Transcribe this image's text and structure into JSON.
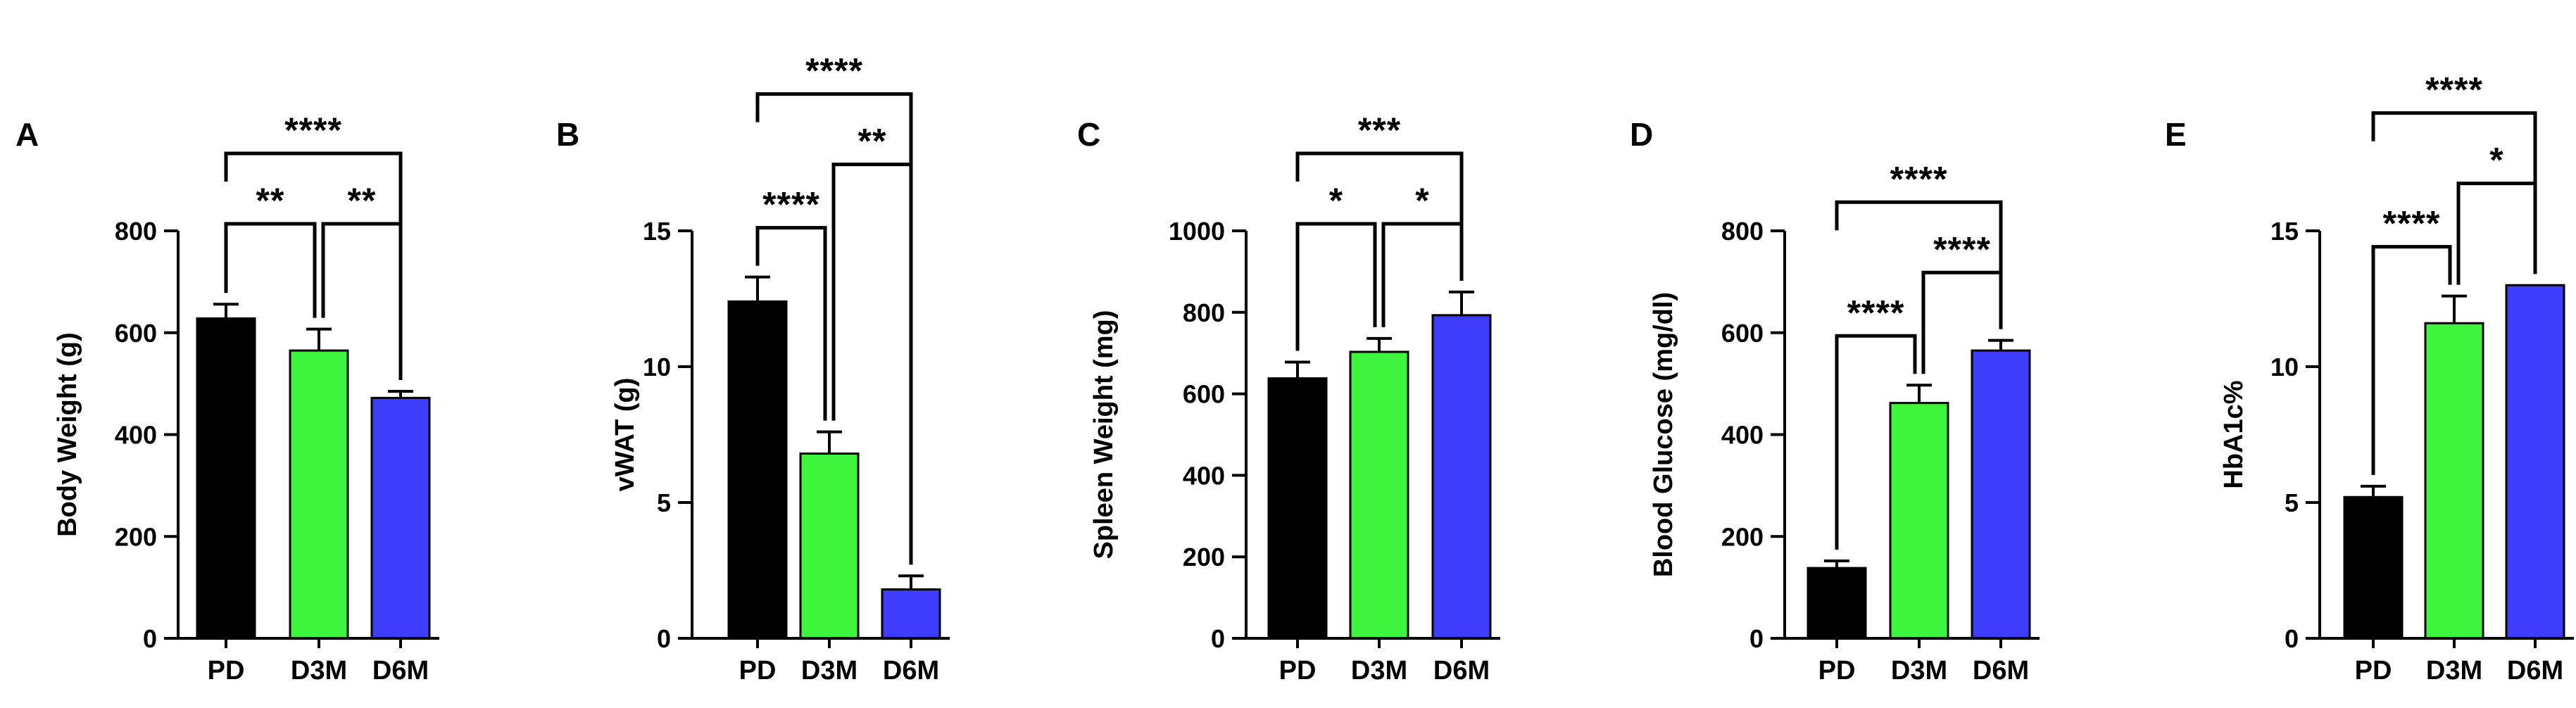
{
  "colors": {
    "PD": "#000000",
    "D3M": "#3cf53c",
    "D6M": "#3d3dfb",
    "axis": "#000000"
  },
  "chart_data": [
    {
      "type": "bar",
      "panel": "A",
      "categories": [
        "PD",
        "D3M",
        "D6M"
      ],
      "values": [
        628,
        565,
        472
      ],
      "errors": [
        28,
        42,
        13
      ],
      "ylabel": "Body Weight (g)",
      "ylim": [
        0,
        800
      ],
      "yticks": [
        0,
        200,
        400,
        600,
        800
      ],
      "significance": [
        {
          "from": "PD",
          "to": "D3M",
          "label": "**"
        },
        {
          "from": "D3M",
          "to": "D6M",
          "label": "**"
        },
        {
          "from": "PD",
          "to": "D6M",
          "label": "****"
        }
      ]
    },
    {
      "type": "bar",
      "panel": "B",
      "categories": [
        "PD",
        "D3M",
        "D6M"
      ],
      "values": [
        12.4,
        6.8,
        1.8
      ],
      "errors": [
        0.9,
        0.8,
        0.5
      ],
      "ylabel": "vWAT (g)",
      "ylim": [
        0,
        15
      ],
      "yticks": [
        0,
        5,
        10,
        15
      ],
      "significance": [
        {
          "from": "PD",
          "to": "D3M",
          "label": "****"
        },
        {
          "from": "D3M",
          "to": "D6M",
          "label": "**"
        },
        {
          "from": "PD",
          "to": "D6M",
          "label": "****"
        }
      ]
    },
    {
      "type": "bar",
      "panel": "C",
      "categories": [
        "PD",
        "D3M",
        "D6M"
      ],
      "values": [
        638,
        703,
        793
      ],
      "errors": [
        40,
        33,
        57
      ],
      "ylabel": "Spleen Weight (mg)",
      "ylim": [
        0,
        1000
      ],
      "yticks": [
        0,
        200,
        400,
        600,
        800,
        1000
      ],
      "significance": [
        {
          "from": "PD",
          "to": "D3M",
          "label": "*"
        },
        {
          "from": "D3M",
          "to": "D6M",
          "label": "*"
        },
        {
          "from": "PD",
          "to": "D6M",
          "label": "***"
        }
      ]
    },
    {
      "type": "bar",
      "panel": "D",
      "categories": [
        "PD",
        "D3M",
        "D6M"
      ],
      "values": [
        138,
        462,
        565
      ],
      "errors": [
        14,
        35,
        20
      ],
      "ylabel": "Blood Glucose (mg/dl)",
      "ylim": [
        0,
        800
      ],
      "yticks": [
        0,
        200,
        400,
        600,
        800
      ],
      "significance": [
        {
          "from": "PD",
          "to": "D3M",
          "label": "****"
        },
        {
          "from": "D3M",
          "to": "D6M",
          "label": "****"
        },
        {
          "from": "PD",
          "to": "D6M",
          "label": "****"
        }
      ]
    },
    {
      "type": "bar",
      "panel": "E",
      "categories": [
        "PD",
        "D3M",
        "D6M"
      ],
      "values": [
        5.2,
        11.6,
        13.0
      ],
      "errors": [
        0.4,
        1.0,
        0.0
      ],
      "ylabel": "HbA1c%",
      "ylim": [
        0,
        15
      ],
      "yticks": [
        0,
        5,
        10,
        15
      ],
      "significance": [
        {
          "from": "PD",
          "to": "D3M",
          "label": "****"
        },
        {
          "from": "D3M",
          "to": "D6M",
          "label": "*"
        },
        {
          "from": "PD",
          "to": "D6M",
          "label": "****"
        }
      ]
    }
  ]
}
